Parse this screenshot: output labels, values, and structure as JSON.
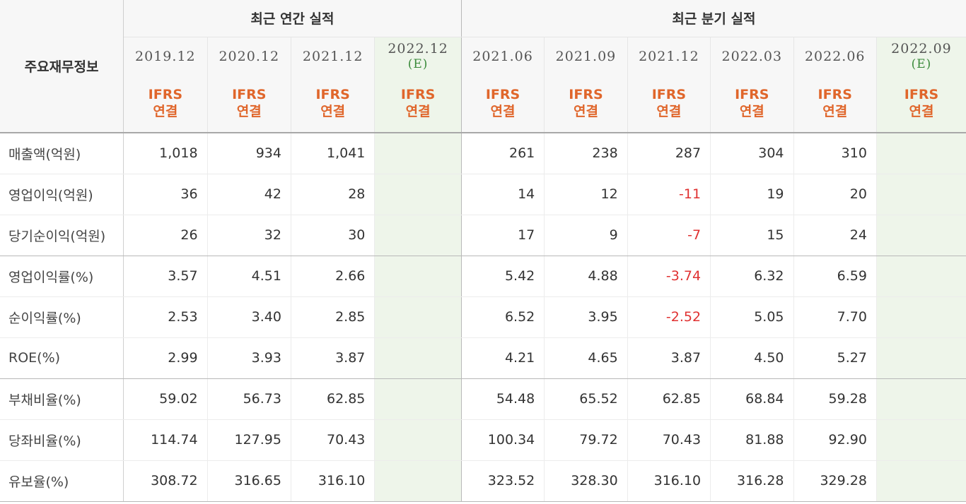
{
  "header": {
    "label": "주요재무정보",
    "annual_title": "최근 연간 실적",
    "quarter_title": "최근 분기 실적",
    "est_mark": "(E)",
    "ifrs_line1": "IFRS",
    "ifrs_line2": "연결",
    "annual_periods": [
      "2019.12",
      "2020.12",
      "2021.12",
      "2022.12"
    ],
    "quarter_periods": [
      "2021.06",
      "2021.09",
      "2021.12",
      "2022.03",
      "2022.06",
      "2022.09"
    ]
  },
  "rows": [
    {
      "label": "매출액(억원)",
      "annual": [
        "1,018",
        "934",
        "1,041",
        ""
      ],
      "quarter": [
        "261",
        "238",
        "287",
        "304",
        "310",
        ""
      ]
    },
    {
      "label": "영업이익(억원)",
      "annual": [
        "36",
        "42",
        "28",
        ""
      ],
      "quarter": [
        "14",
        "12",
        "-11",
        "19",
        "20",
        ""
      ]
    },
    {
      "label": "당기순이익(억원)",
      "annual": [
        "26",
        "32",
        "30",
        ""
      ],
      "quarter": [
        "17",
        "9",
        "-7",
        "15",
        "24",
        ""
      ]
    },
    {
      "label": "영업이익률(%)",
      "annual": [
        "3.57",
        "4.51",
        "2.66",
        ""
      ],
      "quarter": [
        "5.42",
        "4.88",
        "-3.74",
        "6.32",
        "6.59",
        ""
      ]
    },
    {
      "label": "순이익률(%)",
      "annual": [
        "2.53",
        "3.40",
        "2.85",
        ""
      ],
      "quarter": [
        "6.52",
        "3.95",
        "-2.52",
        "5.05",
        "7.70",
        ""
      ]
    },
    {
      "label": "ROE(%)",
      "annual": [
        "2.99",
        "3.93",
        "3.87",
        ""
      ],
      "quarter": [
        "4.21",
        "4.65",
        "3.87",
        "4.50",
        "5.27",
        ""
      ]
    },
    {
      "label": "부채비율(%)",
      "annual": [
        "59.02",
        "56.73",
        "62.85",
        ""
      ],
      "quarter": [
        "54.48",
        "65.52",
        "62.85",
        "68.84",
        "59.28",
        ""
      ]
    },
    {
      "label": "당좌비율(%)",
      "annual": [
        "114.74",
        "127.95",
        "70.43",
        ""
      ],
      "quarter": [
        "100.34",
        "79.72",
        "70.43",
        "81.88",
        "92.90",
        ""
      ]
    },
    {
      "label": "유보율(%)",
      "annual": [
        "308.72",
        "316.65",
        "316.10",
        ""
      ],
      "quarter": [
        "323.52",
        "328.30",
        "316.10",
        "316.28",
        "329.28",
        ""
      ]
    }
  ],
  "colors": {
    "negative": "#e03131",
    "ifrs": "#e0662b",
    "estimate": "#3a8a3a",
    "estimate_bg": "#eef5ea"
  }
}
